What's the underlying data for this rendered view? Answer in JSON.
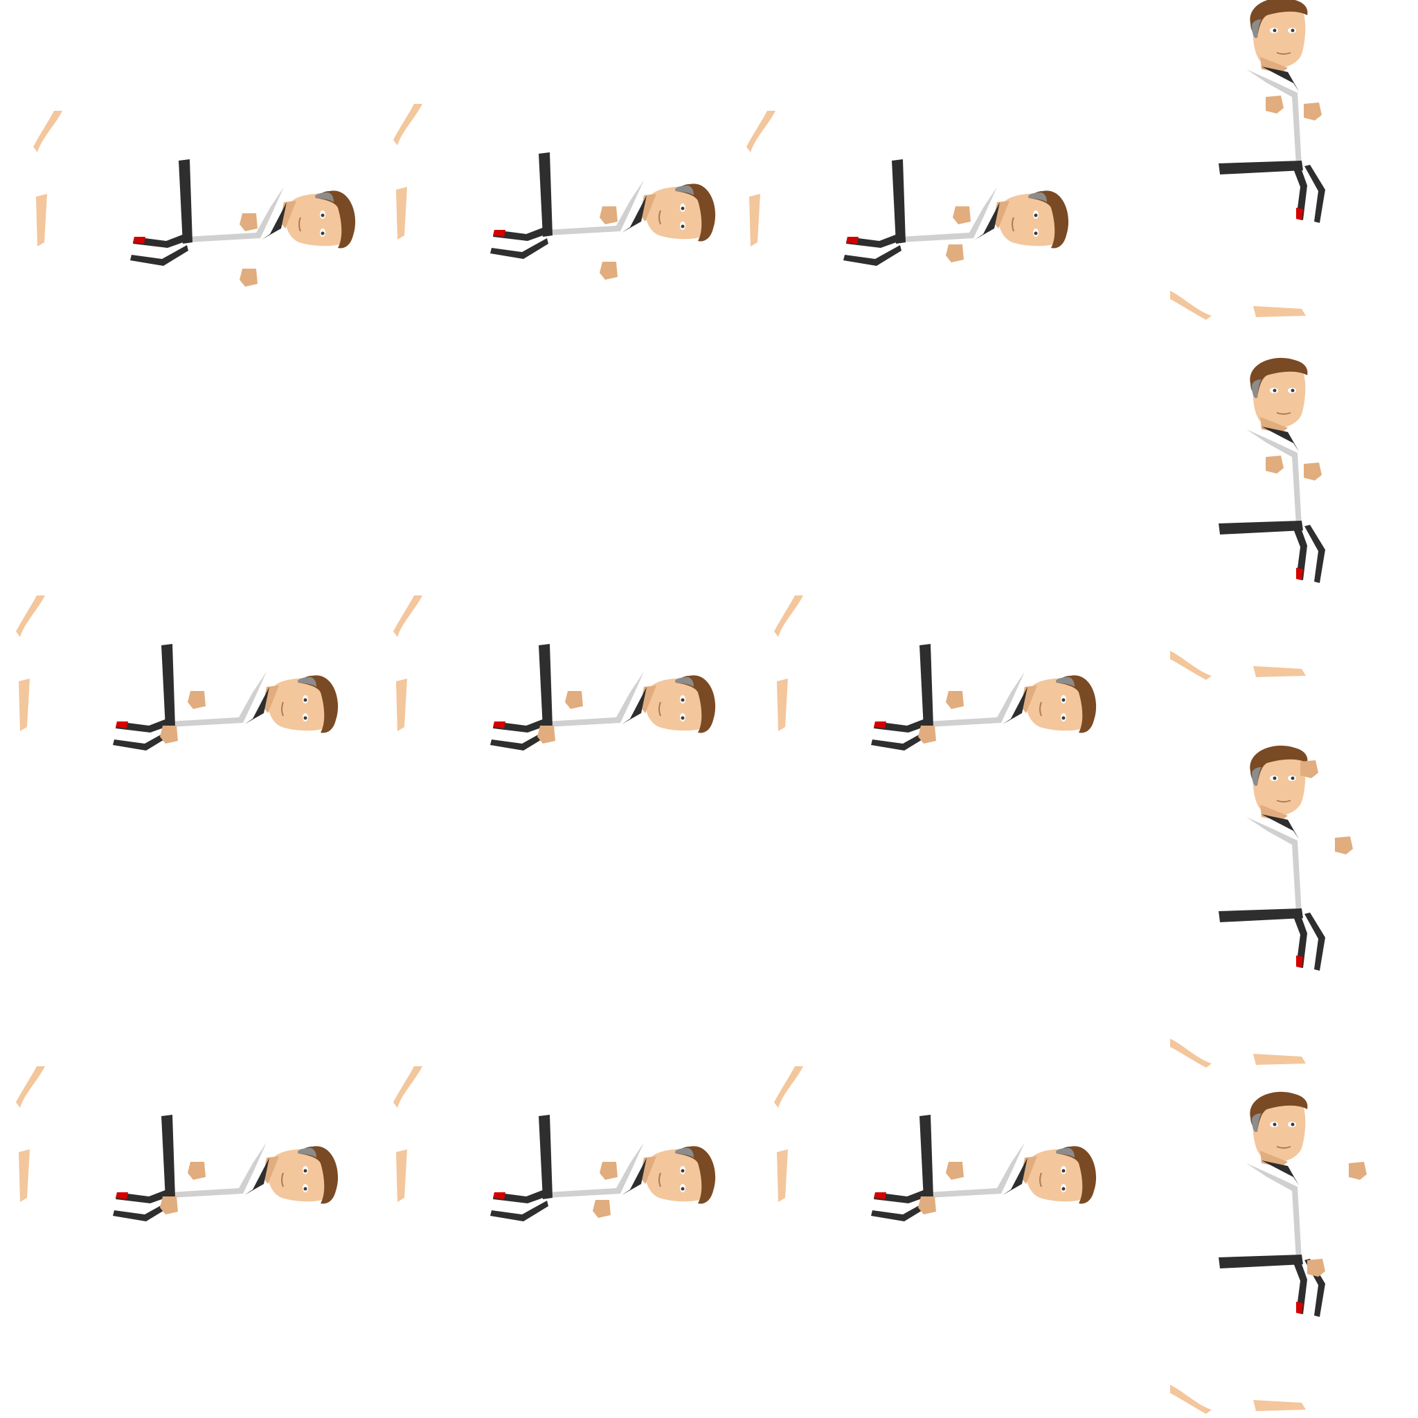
{
  "sprite_sheet": {
    "background_color": "#ffffff",
    "colors": {
      "skin": "#f3c69c",
      "skin_shadow": "#e1ad7e",
      "hair": "#7a4a24",
      "hair_gray": "#8c8c8c",
      "gi": "#ffffff",
      "gi_shadow": "#d0d0d0",
      "belt": "#2e2e2e",
      "belt_stripe": "#d40000",
      "eye": "#3b3b3b"
    },
    "frames": [
      {
        "id": "f1",
        "icon": "fighter-sprite-lying",
        "pose": "lying-arms-raised"
      },
      {
        "id": "f2",
        "icon": "fighter-sprite-lying",
        "pose": "lying-arms-raised"
      },
      {
        "id": "f3",
        "icon": "fighter-sprite-lying",
        "pose": "lying-guard"
      },
      {
        "id": "f4",
        "icon": "fighter-sprite-lying",
        "pose": "lying-relaxed"
      },
      {
        "id": "f5",
        "icon": "fighter-sprite-lying",
        "pose": "lying-relaxed"
      },
      {
        "id": "f6",
        "icon": "fighter-sprite-lying",
        "pose": "lying-relaxed"
      },
      {
        "id": "f7",
        "icon": "fighter-sprite-lying",
        "pose": "lying-relaxed"
      },
      {
        "id": "f8",
        "icon": "fighter-sprite-lying",
        "pose": "lying-guard"
      },
      {
        "id": "f9",
        "icon": "fighter-sprite-lying",
        "pose": "lying-relaxed"
      },
      {
        "id": "f10",
        "icon": "fighter-sprite-upright",
        "pose": "upright-guard"
      },
      {
        "id": "f11",
        "icon": "fighter-sprite-upright",
        "pose": "upright-guard"
      },
      {
        "id": "f12",
        "icon": "fighter-sprite-upright",
        "pose": "upright-salute"
      },
      {
        "id": "f13",
        "icon": "fighter-sprite-upright",
        "pose": "upright-punch"
      }
    ]
  }
}
